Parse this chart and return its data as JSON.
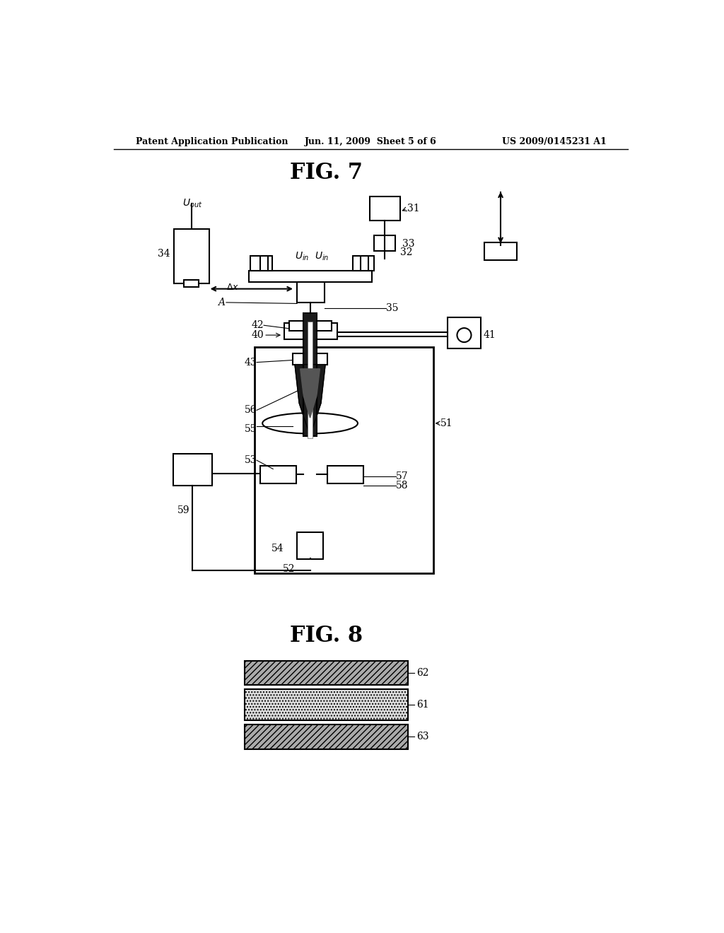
{
  "bg_color": "#ffffff",
  "header_left": "Patent Application Publication",
  "header_center": "Jun. 11, 2009  Sheet 5 of 6",
  "header_right": "US 2009/0145231 A1",
  "fig7_title": "FIG. 7",
  "fig8_title": "FIG. 8"
}
